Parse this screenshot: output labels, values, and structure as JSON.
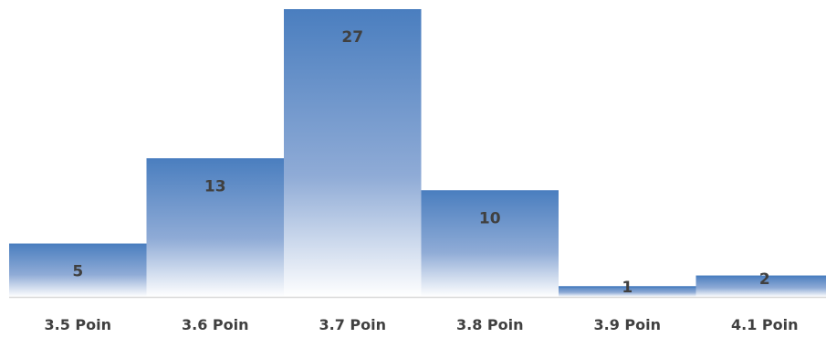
{
  "chart_data": {
    "type": "bar",
    "categories": [
      "3.5 Poin",
      "3.6 Poin",
      "3.7 Poin",
      "3.8 Poin",
      "3.9 Poin",
      "4.1 Poin"
    ],
    "values": [
      5,
      13,
      27,
      10,
      1,
      2
    ],
    "title": "",
    "xlabel": "",
    "ylabel": "",
    "ylim": [
      0,
      27
    ],
    "grid": false,
    "legend": "none",
    "data_labels": true,
    "bar_gradient": {
      "top": "#4a7ebf",
      "bottom": "#ffffff"
    },
    "axis_color": "#d9d9d9",
    "text_color": "#404040"
  }
}
